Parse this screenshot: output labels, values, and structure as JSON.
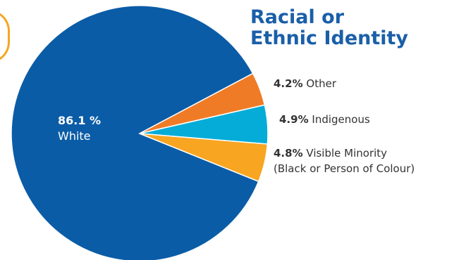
{
  "chart_data": {
    "type": "pie",
    "title_lines": [
      "Racial or",
      "Ethnic Identity"
    ],
    "slices": [
      {
        "label": "White",
        "value": 86.1,
        "value_label": "86.1 %",
        "color": "#0b5ca6"
      },
      {
        "label": "Other",
        "value": 4.2,
        "value_label": "4.2%",
        "color": "#f07b26"
      },
      {
        "label": "Indigenous",
        "value": 4.9,
        "value_label": "4.9%",
        "color": "#05acd7"
      },
      {
        "label": "Visible Minority",
        "label_line2": "(Black or Person of Colour)",
        "value": 4.8,
        "value_label": "4.8%",
        "color": "#f8a522"
      }
    ]
  }
}
